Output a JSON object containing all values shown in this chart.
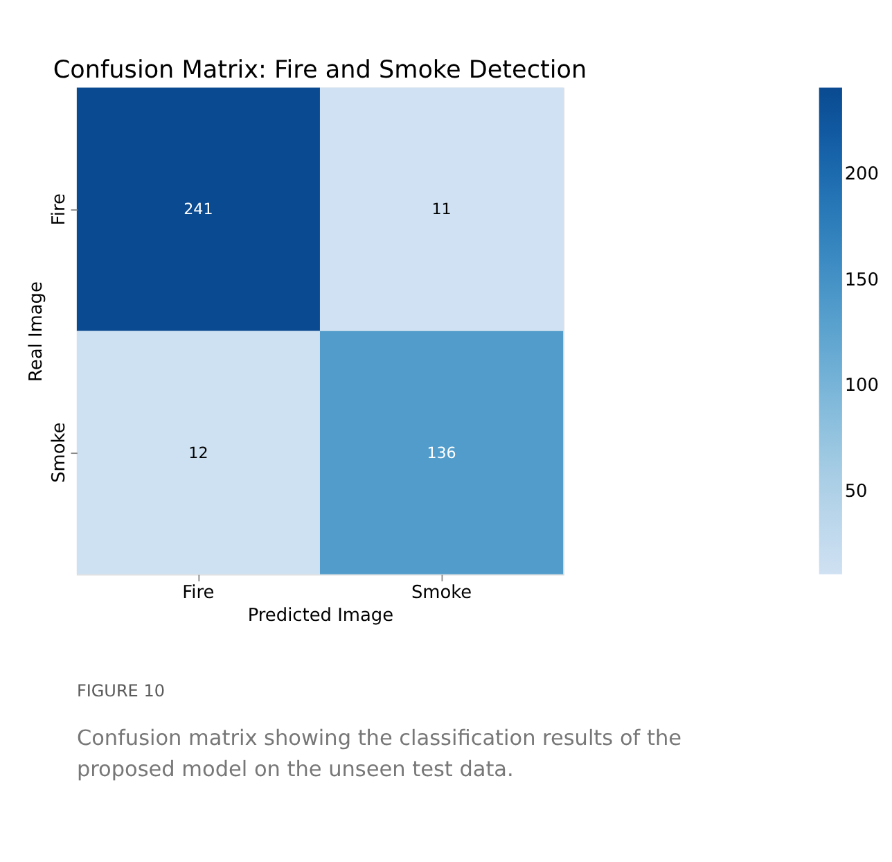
{
  "chart_data": {
    "type": "heatmap",
    "title": "Confusion Matrix: Fire and Smoke Detection",
    "xlabel": "Predicted Image",
    "ylabel": "Real Image",
    "categories": [
      "Fire",
      "Smoke"
    ],
    "y_categories": [
      "Fire",
      "Smoke"
    ],
    "cells": [
      [
        241,
        11
      ],
      [
        12,
        136
      ]
    ],
    "clim": [
      11,
      241
    ],
    "cticks": [
      50,
      100,
      150,
      200
    ],
    "data_labels": true,
    "grid": false,
    "annotations": [
      "FIGURE 10",
      "Confusion matrix showing the classification results of the proposed model on the unseen test data."
    ]
  }
}
